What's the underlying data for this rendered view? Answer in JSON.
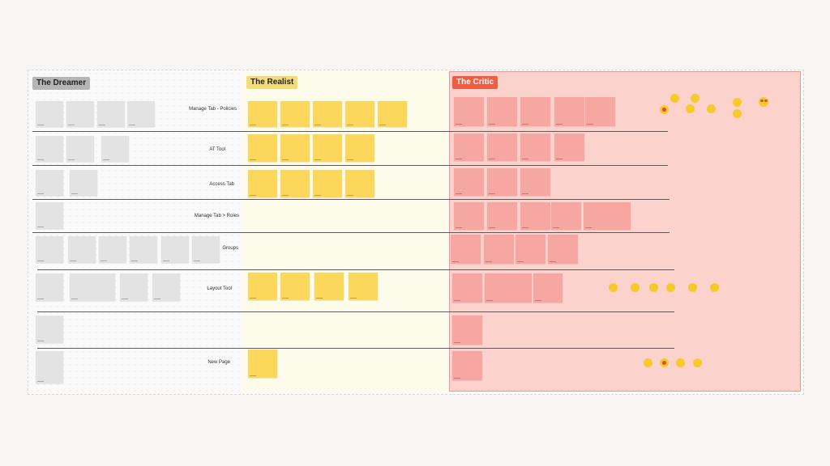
{
  "zones": {
    "dreamer": {
      "label": "The Dreamer",
      "desc": ""
    },
    "realist": {
      "label": "The Realist",
      "desc": ""
    },
    "critic": {
      "label": "The Critic",
      "desc": ""
    }
  },
  "rows": [
    {
      "label": "Manage Tab - Policies"
    },
    {
      "label": "AT Tool"
    },
    {
      "label": "Access Tab"
    },
    {
      "label": "Manage Tab > Roles"
    },
    {
      "label": "Groups"
    },
    {
      "label": "Layout Tool"
    },
    {
      "label": ""
    },
    {
      "label": "New Page"
    }
  ],
  "colors": {
    "dreamer_note": "#e3e3e3",
    "realist_note": "#fbd75b",
    "critic_note": "#f7a7a2",
    "critic_zone": "#fcd2cc",
    "critic_label": "#ef5e43",
    "realist_label": "#f5dc7a",
    "dreamer_label": "#b5b5b5",
    "vote_dot": "#f7c92b"
  },
  "notes": {
    "dreamer": [
      {
        "text": ""
      },
      {
        "text": ""
      },
      {
        "text": ""
      },
      {
        "text": ""
      },
      {
        "text": ""
      },
      {
        "text": ""
      },
      {
        "text": ""
      },
      {
        "text": ""
      },
      {
        "text": ""
      },
      {
        "text": ""
      },
      {
        "text": ""
      },
      {
        "text": ""
      },
      {
        "text": ""
      },
      {
        "text": ""
      },
      {
        "text": ""
      },
      {
        "text": ""
      },
      {
        "text": ""
      },
      {
        "text": ""
      },
      {
        "text": ""
      },
      {
        "text": ""
      },
      {
        "text": ""
      },
      {
        "text": ""
      }
    ],
    "realist": [
      {
        "text": ""
      },
      {
        "text": ""
      },
      {
        "text": ""
      },
      {
        "text": ""
      },
      {
        "text": ""
      },
      {
        "text": ""
      },
      {
        "text": ""
      },
      {
        "text": ""
      },
      {
        "text": ""
      },
      {
        "text": ""
      },
      {
        "text": ""
      },
      {
        "text": ""
      },
      {
        "text": ""
      },
      {
        "text": ""
      },
      {
        "text": ""
      },
      {
        "text": ""
      },
      {
        "text": ""
      },
      {
        "text": ""
      }
    ],
    "critic": [
      {
        "text": ""
      },
      {
        "text": ""
      },
      {
        "text": ""
      },
      {
        "text": ""
      },
      {
        "text": ""
      },
      {
        "text": ""
      },
      {
        "text": ""
      },
      {
        "text": ""
      },
      {
        "text": ""
      },
      {
        "text": ""
      },
      {
        "text": ""
      },
      {
        "text": ""
      },
      {
        "text": ""
      },
      {
        "text": ""
      },
      {
        "text": ""
      },
      {
        "text": ""
      },
      {
        "text": ""
      },
      {
        "text": ""
      },
      {
        "text": ""
      },
      {
        "text": ""
      },
      {
        "text": ""
      },
      {
        "text": ""
      },
      {
        "text": ""
      },
      {
        "text": ""
      },
      {
        "text": ""
      },
      {
        "text": ""
      }
    ]
  },
  "votes": {
    "count": 18,
    "reactions": [
      "heart-eyes-face"
    ]
  }
}
